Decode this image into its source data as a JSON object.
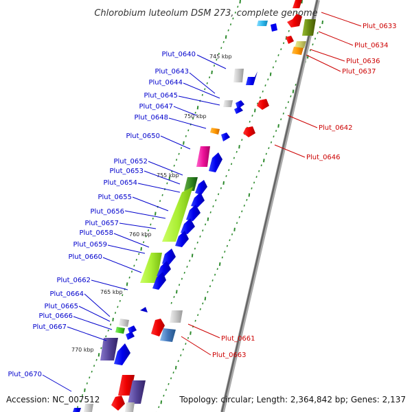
{
  "title": "Chlorobium luteolum DSM 273, complete genome",
  "footer": {
    "accession": "Accession: NC_007512",
    "topology": "Topology: circular; Length: 2,364,842 bp; Genes: 2,137"
  },
  "colors": {
    "forward_label": "#0000cc",
    "reverse_label": "#cc0000",
    "backbone": "#888888",
    "tick": "#2e8b2e"
  },
  "scale_labels": [
    "745 kbp",
    "750 kbp",
    "755 kbp",
    "760 kbp",
    "765 kbp",
    "770 kbp"
  ],
  "forward_genes": [
    "Plut_0640",
    "Plut_0643",
    "Plut_0644",
    "Plut_0645",
    "Plut_0647",
    "Plut_0648",
    "Plut_0650",
    "Plut_0652",
    "Plut_0653",
    "Plut_0654",
    "Plut_0655",
    "Plut_0656",
    "Plut_0657",
    "Plut_0658",
    "Plut_0659",
    "Plut_0660",
    "Plut_0662",
    "Plut_0664",
    "Plut_0665",
    "Plut_0666",
    "Plut_0667",
    "Plut_0670"
  ],
  "reverse_genes": [
    "Plut_0633",
    "Plut_0634",
    "Plut_0636",
    "Plut_0637",
    "Plut_0642",
    "Plut_0646",
    "Plut_0661",
    "Plut_0663"
  ]
}
